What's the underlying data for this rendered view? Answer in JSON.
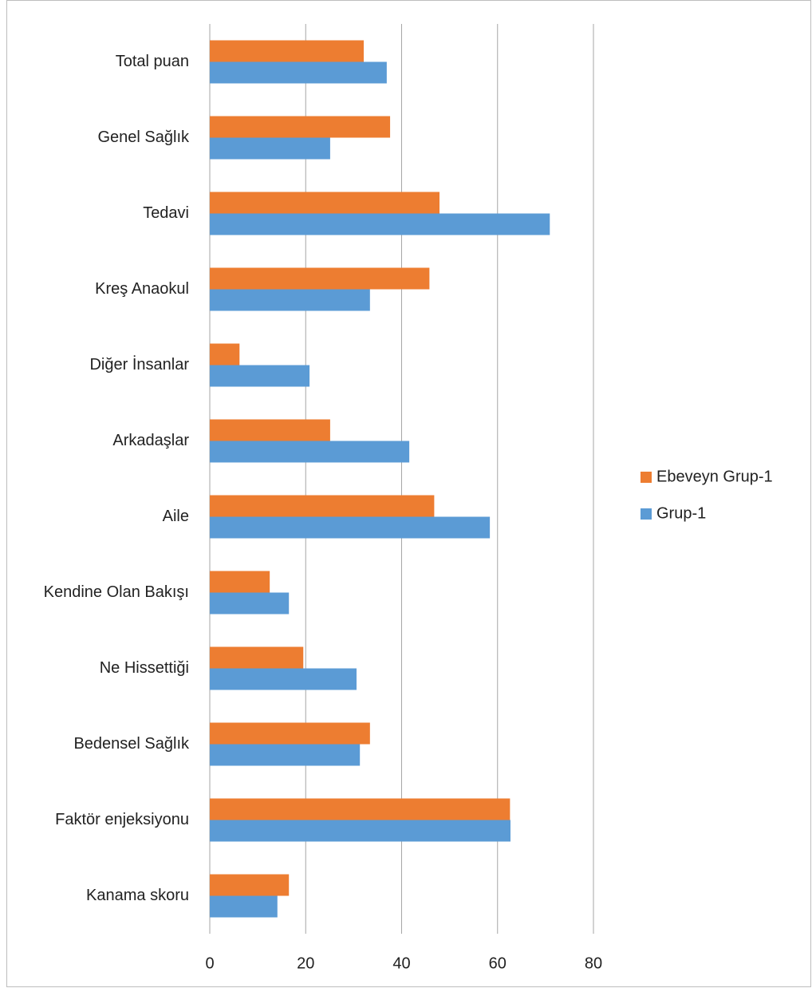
{
  "chart_data": {
    "type": "bar",
    "orientation": "horizontal",
    "categories": [
      "Total puan",
      "Genel Sağlık",
      "Tedavi",
      "Kreş Anaokul",
      "Diğer İnsanlar",
      "Arkadaşlar",
      "Aile",
      "Kendine Olan Bakışı",
      "Ne Hissettiği",
      "Bedensel Sağlık",
      "Faktör enjeksiyonu",
      "Kanama skoru"
    ],
    "series": [
      {
        "name": "Ebeveyn Grup-1",
        "color": "#ed7d31",
        "values": [
          32.1,
          37.6,
          47.9,
          45.8,
          6.2,
          25.1,
          46.8,
          12.5,
          19.5,
          33.4,
          62.6,
          16.5
        ]
      },
      {
        "name": "Grup-1",
        "color": "#5b9bd5",
        "values": [
          36.9,
          25.1,
          70.9,
          33.4,
          20.8,
          41.6,
          58.4,
          16.5,
          30.6,
          31.3,
          62.7,
          14.1
        ]
      }
    ],
    "xlim": [
      0,
      80
    ],
    "xticks": [
      0,
      20,
      40,
      60,
      80
    ],
    "grid": true,
    "legend": "right"
  }
}
